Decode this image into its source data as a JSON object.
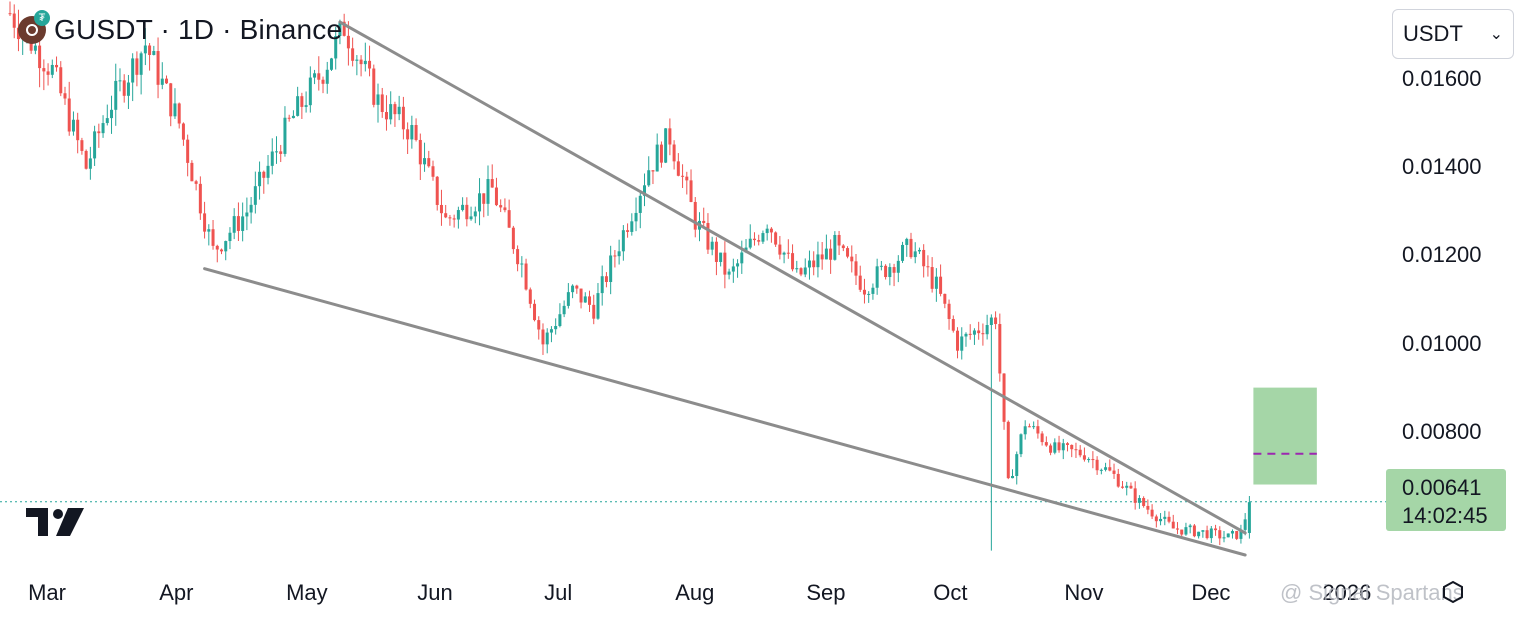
{
  "header": {
    "title": "GUSDT · 1D · Binance",
    "logo_icon": "gusdt-coin-icon"
  },
  "currency_select": {
    "value": "USDT"
  },
  "last_price": {
    "price": "0.00641",
    "countdown": "14:02:45"
  },
  "watermark": {
    "text": "@ Signal Spartans",
    "year_partial": "2026"
  },
  "colors": {
    "up": "#26a69a",
    "down": "#ef5350",
    "trendline": "#8c8c8c",
    "target_box": "#a5d6a7",
    "target_line": "#9c27b0"
  },
  "chart_data": {
    "type": "candlestick",
    "title": "GUSDT · 1D · Binance",
    "y_axis": {
      "ticks": [
        "0.01600",
        "0.01400",
        "0.01200",
        "0.01000",
        "0.00800"
      ],
      "tick_values": [
        0.016,
        0.014,
        0.012,
        0.01,
        0.008
      ],
      "ylim": [
        0.0052,
        0.0178
      ]
    },
    "x_axis": {
      "ticks": [
        "Mar",
        "Apr",
        "May",
        "Jun",
        "Jul",
        "Aug",
        "Sep",
        "Oct",
        "Nov",
        "Dec",
        "2026"
      ],
      "start_date": "2025-02-20",
      "end_date": "2026-01-14"
    },
    "close_path": [
      [
        "2025-02-20",
        0.0175
      ],
      [
        "2025-03-02",
        0.0162
      ],
      [
        "2025-03-10",
        0.014
      ],
      [
        "2025-03-15",
        0.0153
      ],
      [
        "2025-03-24",
        0.0168
      ],
      [
        "2025-04-01",
        0.015
      ],
      [
        "2025-04-09",
        0.0121
      ],
      [
        "2025-04-17",
        0.013
      ],
      [
        "2025-04-27",
        0.015
      ],
      [
        "2025-05-05",
        0.0162
      ],
      [
        "2025-05-10",
        0.0172
      ],
      [
        "2025-05-18",
        0.0155
      ],
      [
        "2025-05-26",
        0.0148
      ],
      [
        "2025-06-03",
        0.0128
      ],
      [
        "2025-06-14",
        0.0135
      ],
      [
        "2025-06-21",
        0.0118
      ],
      [
        "2025-06-26",
        0.01
      ],
      [
        "2025-07-03",
        0.0112
      ],
      [
        "2025-07-08",
        0.0108
      ],
      [
        "2025-07-21",
        0.014
      ],
      [
        "2025-07-26",
        0.0147
      ],
      [
        "2025-08-01",
        0.0128
      ],
      [
        "2025-08-09",
        0.0115
      ],
      [
        "2025-08-18",
        0.0128
      ],
      [
        "2025-08-25",
        0.0115
      ],
      [
        "2025-09-03",
        0.0122
      ],
      [
        "2025-09-10",
        0.0113
      ],
      [
        "2025-09-21",
        0.0122
      ],
      [
        "2025-09-27",
        0.0113
      ],
      [
        "2025-10-02",
        0.01
      ],
      [
        "2025-10-11",
        0.0106
      ],
      [
        "2025-10-14",
        0.0068
      ],
      [
        "2025-10-18",
        0.0082
      ],
      [
        "2025-10-25",
        0.0076
      ],
      [
        "2025-11-01",
        0.0075
      ],
      [
        "2025-11-08",
        0.007
      ],
      [
        "2025-11-14",
        0.0064
      ],
      [
        "2025-11-22",
        0.0058
      ],
      [
        "2025-11-30",
        0.0057
      ],
      [
        "2025-12-05",
        0.0056
      ],
      [
        "2025-12-08",
        0.0057
      ],
      [
        "2025-12-10",
        0.0064
      ]
    ],
    "wicks": [
      {
        "date": "2025-10-10",
        "low": 0.0053
      }
    ],
    "trendlines": [
      {
        "name": "upper",
        "from": [
          "2025-05-09",
          0.0173
        ],
        "to": [
          "2025-12-09",
          0.0057
        ]
      },
      {
        "name": "lower",
        "from": [
          "2025-04-07",
          0.0117
        ],
        "to": [
          "2025-12-09",
          0.0052
        ]
      }
    ],
    "target_box": {
      "from": "2025-12-10",
      "to": "2025-12-25",
      "low": 0.0068,
      "high": 0.009,
      "target": 0.0075
    },
    "last_price_line": 0.00641,
    "grid": false
  }
}
